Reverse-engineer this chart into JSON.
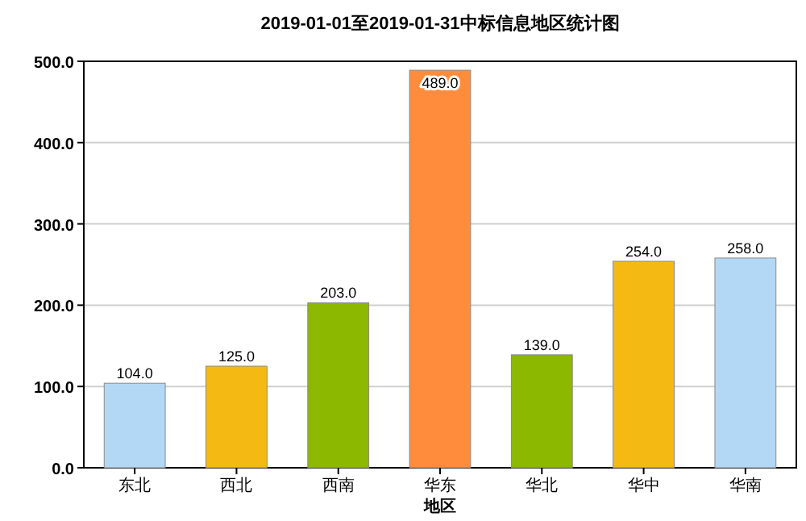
{
  "chart_data": {
    "type": "bar",
    "title": "2019-01-01至2019-01-31中标信息地区统计图",
    "xlabel": "地区",
    "categories": [
      "东北",
      "西北",
      "西南",
      "华东",
      "华北",
      "华中",
      "华南"
    ],
    "values": [
      104.0,
      125.0,
      203.0,
      489.0,
      139.0,
      254.0,
      258.0
    ],
    "value_labels": [
      "104.0",
      "125.0",
      "203.0",
      "489.0",
      "139.0",
      "254.0",
      "258.0"
    ],
    "colors": [
      "#b3d8f5",
      "#f5b914",
      "#8cb800",
      "#ff8c3c",
      "#8cb800",
      "#f5b914",
      "#b3d8f5"
    ],
    "ylim": [
      0,
      500
    ],
    "yticks": [
      {
        "value": 0,
        "label": "0.0"
      },
      {
        "value": 100,
        "label": "100.0"
      },
      {
        "value": 200,
        "label": "200.0"
      },
      {
        "value": 300,
        "label": "300.0"
      },
      {
        "value": 400,
        "label": "400.0"
      },
      {
        "value": 500,
        "label": "500.0"
      }
    ],
    "grid": "y"
  }
}
